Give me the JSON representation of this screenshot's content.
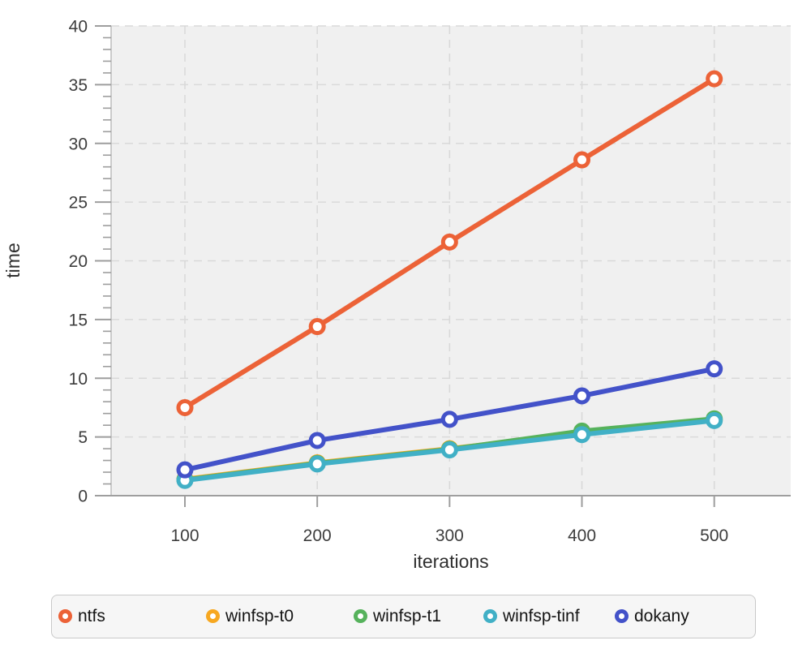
{
  "chart_data": {
    "type": "line",
    "title": "",
    "xlabel": "iterations",
    "ylabel": "time",
    "x": [
      100,
      200,
      300,
      400,
      500
    ],
    "x_tick_labels": [
      "100",
      "200",
      "300",
      "400",
      "500"
    ],
    "y_tick_labels": [
      "0",
      "5",
      "10",
      "15",
      "20",
      "25",
      "30",
      "35",
      "40"
    ],
    "y_major_ticks": [
      0,
      5,
      10,
      15,
      20,
      25,
      30,
      35,
      40
    ],
    "y_minor_tick_step": 1,
    "ylim": [
      0,
      40
    ],
    "xlim": [
      44,
      558
    ],
    "grid": "dashed gridlines at major ticks, both axes, on light-gray plot background",
    "legend_position": "bottom box",
    "marker": "open circle",
    "series": [
      {
        "name": "ntfs",
        "color": "#EC6237",
        "values": [
          7.5,
          14.4,
          21.6,
          28.6,
          35.5
        ]
      },
      {
        "name": "winfsp-t0",
        "color": "#F7A821",
        "values": [
          1.4,
          2.8,
          4.0,
          5.3,
          6.45
        ]
      },
      {
        "name": "winfsp-t1",
        "color": "#56B25C",
        "values": [
          1.35,
          2.75,
          3.95,
          5.5,
          6.55
        ]
      },
      {
        "name": "winfsp-tinf",
        "color": "#41B0C6",
        "values": [
          1.3,
          2.7,
          3.9,
          5.2,
          6.4
        ]
      },
      {
        "name": "dokany",
        "color": "#4352C9",
        "values": [
          2.2,
          4.7,
          6.5,
          8.5,
          10.8
        ]
      }
    ],
    "style_colors": {
      "plot_background": "#f0f0f0",
      "gridline": "#d9d9d9",
      "axis_line": "#9e9e9e",
      "left_edge_line": "#bdbdbd",
      "tick": "#9e9e9e",
      "tick_text": "#3d3d3d",
      "axis_label_text": "#2f2f2f",
      "legend_background": "#f6f6f6",
      "legend_border": "#c9c9c9"
    }
  }
}
